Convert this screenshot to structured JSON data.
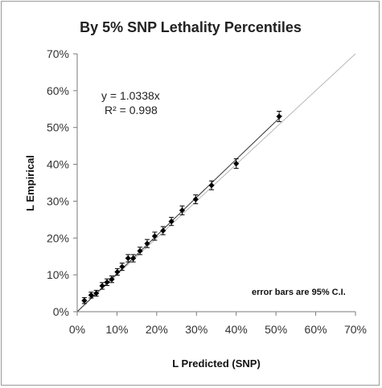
{
  "chart_data": {
    "type": "scatter",
    "title": "By 5% SNP Lethality Percentiles",
    "xlabel": "L Predicted (SNP)",
    "ylabel": "L Empirical",
    "xlim": [
      0,
      70
    ],
    "ylim": [
      0,
      70
    ],
    "x_ticks": [
      "0%",
      "10%",
      "20%",
      "30%",
      "40%",
      "50%",
      "60%",
      "70%"
    ],
    "y_ticks": [
      "0%",
      "10%",
      "20%",
      "30%",
      "40%",
      "50%",
      "60%",
      "70%"
    ],
    "trendline": {
      "equation": "y = 1.0338x",
      "r_squared": "R² = 0.998",
      "slope": 1.0338
    },
    "reference_line": {
      "slope": 1
    },
    "annotation": "error bars are 95% C.I.",
    "grid": false,
    "series": [
      {
        "marker": "diamond",
        "x": [
          1.8,
          3.5,
          4.8,
          6.3,
          7.5,
          8.7,
          10.1,
          11.3,
          12.8,
          14.1,
          15.8,
          17.6,
          19.5,
          21.6,
          23.7,
          26.4,
          29.8,
          33.8,
          40.0,
          50.8
        ],
        "y": [
          3.0,
          4.5,
          5.0,
          7.0,
          8.0,
          8.8,
          10.8,
          12.2,
          14.5,
          14.5,
          16.5,
          18.5,
          20.5,
          22.0,
          24.5,
          27.5,
          30.5,
          34.3,
          40.2,
          53.0
        ],
        "error": [
          0.8,
          0.8,
          0.8,
          0.9,
          0.9,
          0.9,
          0.9,
          1.0,
          1.0,
          1.0,
          1.0,
          1.1,
          1.1,
          1.1,
          1.1,
          1.2,
          1.2,
          1.2,
          1.3,
          1.4
        ]
      }
    ]
  }
}
